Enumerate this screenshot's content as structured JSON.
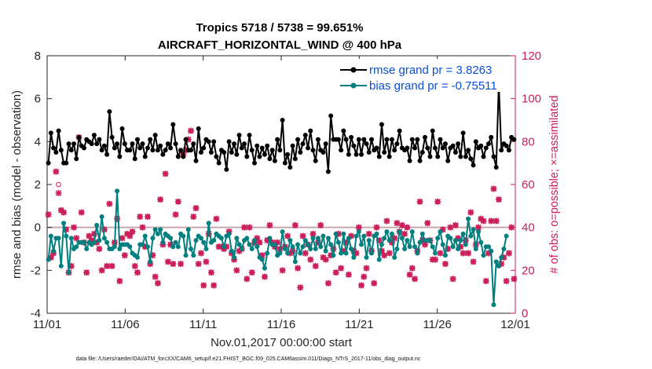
{
  "chart_data": {
    "type": "line",
    "title": "Tropics 5718 / 5738 = 99.651%",
    "subtitle": "AIRCRAFT_HORIZONTAL_WIND @ 400 hPa",
    "xlabel": "Nov.01,2017 00:00:00 start",
    "ylabel": "rmse and bias (model - observation)",
    "ylabel_right": "# of obs: o=possible; ×=assimilated",
    "footer": "data file: /Users/raeder/DAI/ATM_forcXX/CAM6_setup/f.e21.FHIST_BGC.f09_025.CAM6assim.011/Diags_NTrS_2017-11/obs_diag_output.nc",
    "xlim": [
      0,
      30
    ],
    "ylim": [
      -4,
      8
    ],
    "ylim_right": [
      0,
      120
    ],
    "x_ticks": [
      0,
      5,
      10,
      15,
      20,
      25,
      30
    ],
    "x_tick_labels": [
      "11/01",
      "11/06",
      "11/11",
      "11/16",
      "11/21",
      "11/26",
      "12/01"
    ],
    "y_ticks": [
      -4,
      -2,
      0,
      2,
      4,
      6,
      8
    ],
    "y_tick_labels": [
      "-4",
      "-2",
      "0",
      "2",
      "4",
      "6",
      "8"
    ],
    "y_right_ticks": [
      0,
      20,
      40,
      60,
      80,
      100,
      120
    ],
    "y_right_tick_labels": [
      "0",
      "20",
      "40",
      "60",
      "80",
      "100",
      "120"
    ],
    "colors": {
      "rmse": "#000000",
      "bias": "#007f7f",
      "counts": "#cc1f5a",
      "zero_line": "#c8a8ac",
      "legend_text": "#0b4fd6"
    },
    "legend": {
      "placement": "top-right"
    },
    "series": [
      {
        "name": "rmse grand pr = 3.8263",
        "axis": "left",
        "values": [
          3.0,
          4.4,
          3.7,
          3.5,
          4.5,
          3.6,
          3.0,
          3.0,
          3.9,
          3.6,
          3.9,
          3.2,
          4.2,
          3.8,
          3.7,
          4.1,
          4.0,
          3.9,
          4.3,
          3.9,
          4.1,
          3.6,
          3.8,
          3.4,
          5.4,
          4.2,
          3.7,
          3.9,
          3.3,
          4.6,
          3.9,
          3.6,
          3.6,
          3.9,
          3.2,
          4.1,
          3.7,
          3.9,
          3.3,
          3.7,
          4.1,
          3.6,
          4.3,
          3.6,
          3.8,
          3.4,
          3.6,
          3.9,
          3.7,
          4.8,
          3.9,
          3.3,
          3.6,
          3.3,
          4.1,
          3.6,
          3.6,
          3.9,
          3.1,
          4.6,
          3.5,
          3.7,
          4.1,
          4.0,
          3.5,
          4.0,
          3.3,
          3.0,
          3.6,
          3.5,
          2.7,
          4.0,
          3.5,
          3.9,
          3.4,
          4.3,
          3.7,
          3.9,
          3.3,
          4.3,
          3.6,
          3.0,
          3.8,
          3.3,
          3.7,
          3.4,
          3.8,
          3.2,
          3.6,
          3.1,
          4.1,
          3.6,
          5.0,
          3.0,
          3.4,
          2.8,
          3.8,
          3.2,
          4.1,
          3.5,
          3.9,
          4.3,
          3.7,
          4.5,
          3.6,
          3.1,
          4.1,
          3.6,
          3.5,
          3.9,
          2.6,
          5.2,
          4.1,
          4.1,
          4.1,
          3.6,
          4.5,
          4.1,
          3.4,
          4.2,
          3.8,
          3.4,
          4.1,
          3.4,
          4.1,
          3.9,
          3.5,
          4.1,
          3.6,
          3.7,
          3.3,
          4.8,
          3.5,
          4.1,
          3.3,
          4.1,
          3.6,
          3.9,
          4.5,
          3.7,
          3.6,
          3.7,
          3.1,
          4.1,
          3.7,
          4.1,
          3.1,
          3.5,
          4.2,
          3.7,
          3.3,
          4.5,
          3.7,
          3.3,
          4.1,
          3.7,
          3.9,
          3.1,
          3.7,
          3.8,
          3.5,
          3.9,
          3.3,
          4.4,
          3.3,
          3.6,
          3.2,
          2.9,
          4.0,
          3.7,
          3.8,
          3.3,
          3.7,
          3.9,
          4.2,
          3.3,
          2.8,
          6.7,
          3.6,
          3.9,
          3.8,
          3.6,
          4.2,
          4.1
        ]
      },
      {
        "name": "bias grand pr = -0.75511",
        "axis": "left",
        "values": [
          -1.5,
          -0.4,
          -1.1,
          -0.5,
          -0.5,
          -1.8,
          0.2,
          -0.4,
          -2.1,
          -0.5,
          -1.0,
          -0.9,
          -0.7,
          -0.7,
          -0.7,
          -1.0,
          -0.7,
          -0.8,
          -0.7,
          0.1,
          -0.6,
          0.5,
          -0.5,
          -0.7,
          -1.0,
          -1.0,
          -0.9,
          1.7,
          -1.0,
          -0.8,
          -0.8,
          -0.8,
          -0.9,
          -1.2,
          -1.3,
          -1.4,
          -0.8,
          -0.8,
          -0.4,
          -0.9,
          -1.6,
          -0.5,
          -0.1,
          -0.3,
          -0.1,
          -0.7,
          -0.3,
          -0.4,
          -0.5,
          -0.9,
          -0.7,
          -0.9,
          -0.3,
          -0.4,
          -1.3,
          -0.1,
          -1.0,
          -1.3,
          -0.6,
          -0.4,
          -0.5,
          -0.7,
          -1.0,
          0.2,
          -0.7,
          -0.6,
          -0.3,
          -0.4,
          -0.5,
          -0.9,
          -0.4,
          -0.3,
          -1.1,
          -1.4,
          -0.5,
          -0.8,
          -1.0,
          -0.6,
          -0.5,
          -0.8,
          -1.0,
          -0.6,
          -0.9,
          -1.4,
          -1.5,
          -1.9,
          -1.2,
          -0.5,
          -0.8,
          -0.8,
          -1.3,
          -1.2,
          -0.2,
          -1.0,
          -1.2,
          -0.6,
          -0.9,
          -1.6,
          -0.8,
          -1.2,
          -0.9,
          -0.6,
          -0.8,
          -1.0,
          -0.5,
          -1.0,
          -0.5,
          -0.9,
          -0.4,
          -1.1,
          -0.5,
          -0.8,
          -1.3,
          -0.3,
          -0.7,
          -1.2,
          -0.3,
          -1.2,
          -0.5,
          -1.0,
          -1.4,
          -0.4,
          -0.2,
          -0.8,
          -0.4,
          -1.4,
          -0.6,
          -1.2,
          -0.4,
          -0.3,
          -1.5,
          -0.8,
          -0.5,
          -0.2,
          -0.6,
          -0.3,
          -1.4,
          -1.0,
          -0.2,
          -0.5,
          -1.0,
          -0.6,
          -0.9,
          -0.2,
          -0.9,
          -1.2,
          -0.7,
          -0.3,
          -0.6,
          -0.6,
          -0.6,
          -0.9,
          -1.2,
          -0.5,
          -0.2,
          -0.8,
          -1.3,
          -0.4,
          -0.5,
          -0.9,
          -0.6,
          -1.0,
          -0.6,
          -0.3,
          -0.8,
          0.4,
          -0.4,
          -0.1,
          -1.0,
          -0.2,
          -0.7,
          -1.3,
          -0.9,
          -0.9,
          -1.1,
          -3.6,
          -1.6,
          -1.8,
          -1.4,
          -1.0,
          -0.4
        ]
      },
      {
        "name": "possible",
        "axis": "right",
        "values": [
          46,
          26,
          28,
          66,
          60,
          48,
          47,
          39,
          19,
          22,
          40,
          35,
          82,
          47,
          33,
          19,
          36,
          34,
          37,
          33,
          30,
          20,
          39,
          22,
          51,
          22,
          33,
          44,
          15,
          35,
          27,
          37,
          36,
          38,
          22,
          19,
          45,
          40,
          31,
          45,
          23,
          27,
          17,
          14,
          53,
          32,
          65,
          24,
          32,
          23,
          46,
          52,
          23,
          74,
          76,
          81,
          85,
          45,
          49,
          23,
          28,
          13,
          24,
          37,
          19,
          13,
          44,
          31,
          31,
          30,
          31,
          38,
          28,
          25,
          20,
          29,
          30,
          40,
          16,
          40,
          19,
          33,
          35,
          33,
          27,
          17,
          34,
          41,
          33,
          31,
          33,
          30,
          20,
          31,
          36,
          28,
          29,
          41,
          21,
          12,
          36,
          28,
          32,
          25,
          37,
          22,
          33,
          41,
          26,
          25,
          14,
          27,
          30,
          19,
          37,
          21,
          29,
          33,
          18,
          36,
          29,
          28,
          40,
          13,
          17,
          21,
          37,
          29,
          14,
          40,
          34,
          29,
          27,
          43,
          28,
          33,
          35,
          42,
          38,
          41,
          37,
          40,
          18,
          21,
          16,
          29,
          52,
          34,
          32,
          42,
          34,
          25,
          25,
          52,
          28,
          39,
          23,
          30,
          40,
          16,
          41,
          35,
          31,
          28,
          34,
          28,
          47,
          24,
          32,
          40,
          44,
          43,
          15,
          28,
          43,
          58,
          43,
          53,
          23,
          26,
          15,
          28,
          40,
          16
        ]
      },
      {
        "name": "assimilated",
        "axis": "right",
        "values": [
          46,
          26,
          28,
          66,
          56,
          48,
          47,
          39,
          19,
          22,
          40,
          35,
          82,
          47,
          33,
          19,
          36,
          34,
          37,
          33,
          30,
          20,
          39,
          22,
          51,
          22,
          33,
          44,
          15,
          35,
          27,
          37,
          36,
          38,
          22,
          19,
          45,
          40,
          31,
          45,
          23,
          27,
          17,
          14,
          53,
          32,
          65,
          24,
          32,
          23,
          46,
          52,
          23,
          74,
          76,
          81,
          85,
          45,
          49,
          23,
          28,
          13,
          24,
          37,
          19,
          13,
          44,
          31,
          31,
          30,
          31,
          38,
          28,
          25,
          20,
          29,
          30,
          40,
          16,
          40,
          19,
          33,
          35,
          33,
          27,
          17,
          34,
          41,
          33,
          31,
          33,
          30,
          20,
          31,
          36,
          28,
          29,
          41,
          21,
          12,
          36,
          28,
          32,
          25,
          37,
          22,
          33,
          41,
          26,
          25,
          14,
          27,
          30,
          19,
          37,
          21,
          29,
          33,
          18,
          36,
          29,
          28,
          40,
          13,
          17,
          21,
          37,
          29,
          14,
          40,
          34,
          29,
          27,
          43,
          28,
          33,
          35,
          42,
          38,
          41,
          37,
          40,
          18,
          21,
          16,
          29,
          52,
          34,
          32,
          42,
          34,
          25,
          25,
          52,
          28,
          39,
          23,
          30,
          40,
          16,
          41,
          35,
          31,
          28,
          34,
          28,
          47,
          24,
          32,
          40,
          44,
          43,
          15,
          28,
          43,
          58,
          43,
          53,
          23,
          26,
          15,
          28,
          40,
          16
        ]
      }
    ]
  }
}
